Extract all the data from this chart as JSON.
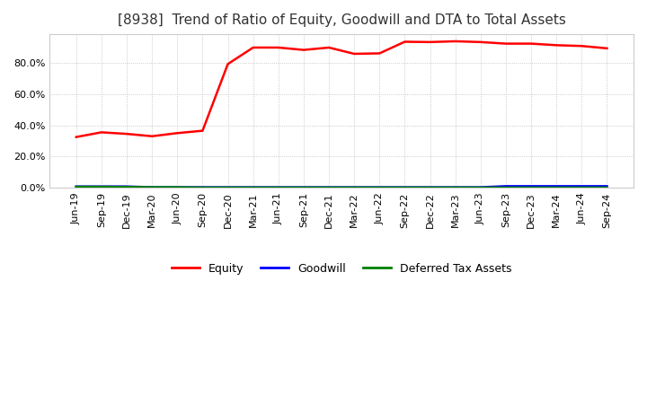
{
  "title": "[8938]  Trend of Ratio of Equity, Goodwill and DTA to Total Assets",
  "x_labels": [
    "Jun-19",
    "Sep-19",
    "Dec-19",
    "Mar-20",
    "Jun-20",
    "Sep-20",
    "Dec-20",
    "Mar-21",
    "Jun-21",
    "Sep-21",
    "Dec-21",
    "Mar-22",
    "Jun-22",
    "Sep-22",
    "Dec-22",
    "Mar-23",
    "Jun-23",
    "Sep-23",
    "Dec-23",
    "Mar-24",
    "Jun-24",
    "Sep-24"
  ],
  "equity": [
    0.325,
    0.355,
    0.345,
    0.33,
    0.35,
    0.365,
    0.79,
    0.895,
    0.895,
    0.88,
    0.895,
    0.855,
    0.858,
    0.932,
    0.93,
    0.935,
    0.93,
    0.92,
    0.92,
    0.91,
    0.905,
    0.89
  ],
  "goodwill": [
    0.01,
    0.01,
    0.01,
    0.005,
    0.005,
    0.005,
    0.005,
    0.005,
    0.005,
    0.005,
    0.005,
    0.005,
    0.005,
    0.005,
    0.005,
    0.005,
    0.005,
    0.012,
    0.012,
    0.012,
    0.012,
    0.012
  ],
  "dta": [
    0.008,
    0.008,
    0.007,
    0.005,
    0.005,
    0.003,
    0.003,
    0.003,
    0.003,
    0.003,
    0.003,
    0.003,
    0.003,
    0.003,
    0.003,
    0.003,
    0.003,
    0.003,
    0.003,
    0.003,
    0.003,
    0.003
  ],
  "equity_color": "#ff0000",
  "goodwill_color": "#0000ff",
  "dta_color": "#008000",
  "line_width": 1.8,
  "ylim": [
    0.0,
    0.98
  ],
  "yticks": [
    0.0,
    0.2,
    0.4,
    0.6,
    0.8
  ],
  "bg_color": "#ffffff",
  "plot_bg_color": "#ffffff",
  "grid_color": "#bbbbbb",
  "title_fontsize": 11,
  "tick_fontsize": 8,
  "legend_labels": [
    "Equity",
    "Goodwill",
    "Deferred Tax Assets"
  ]
}
